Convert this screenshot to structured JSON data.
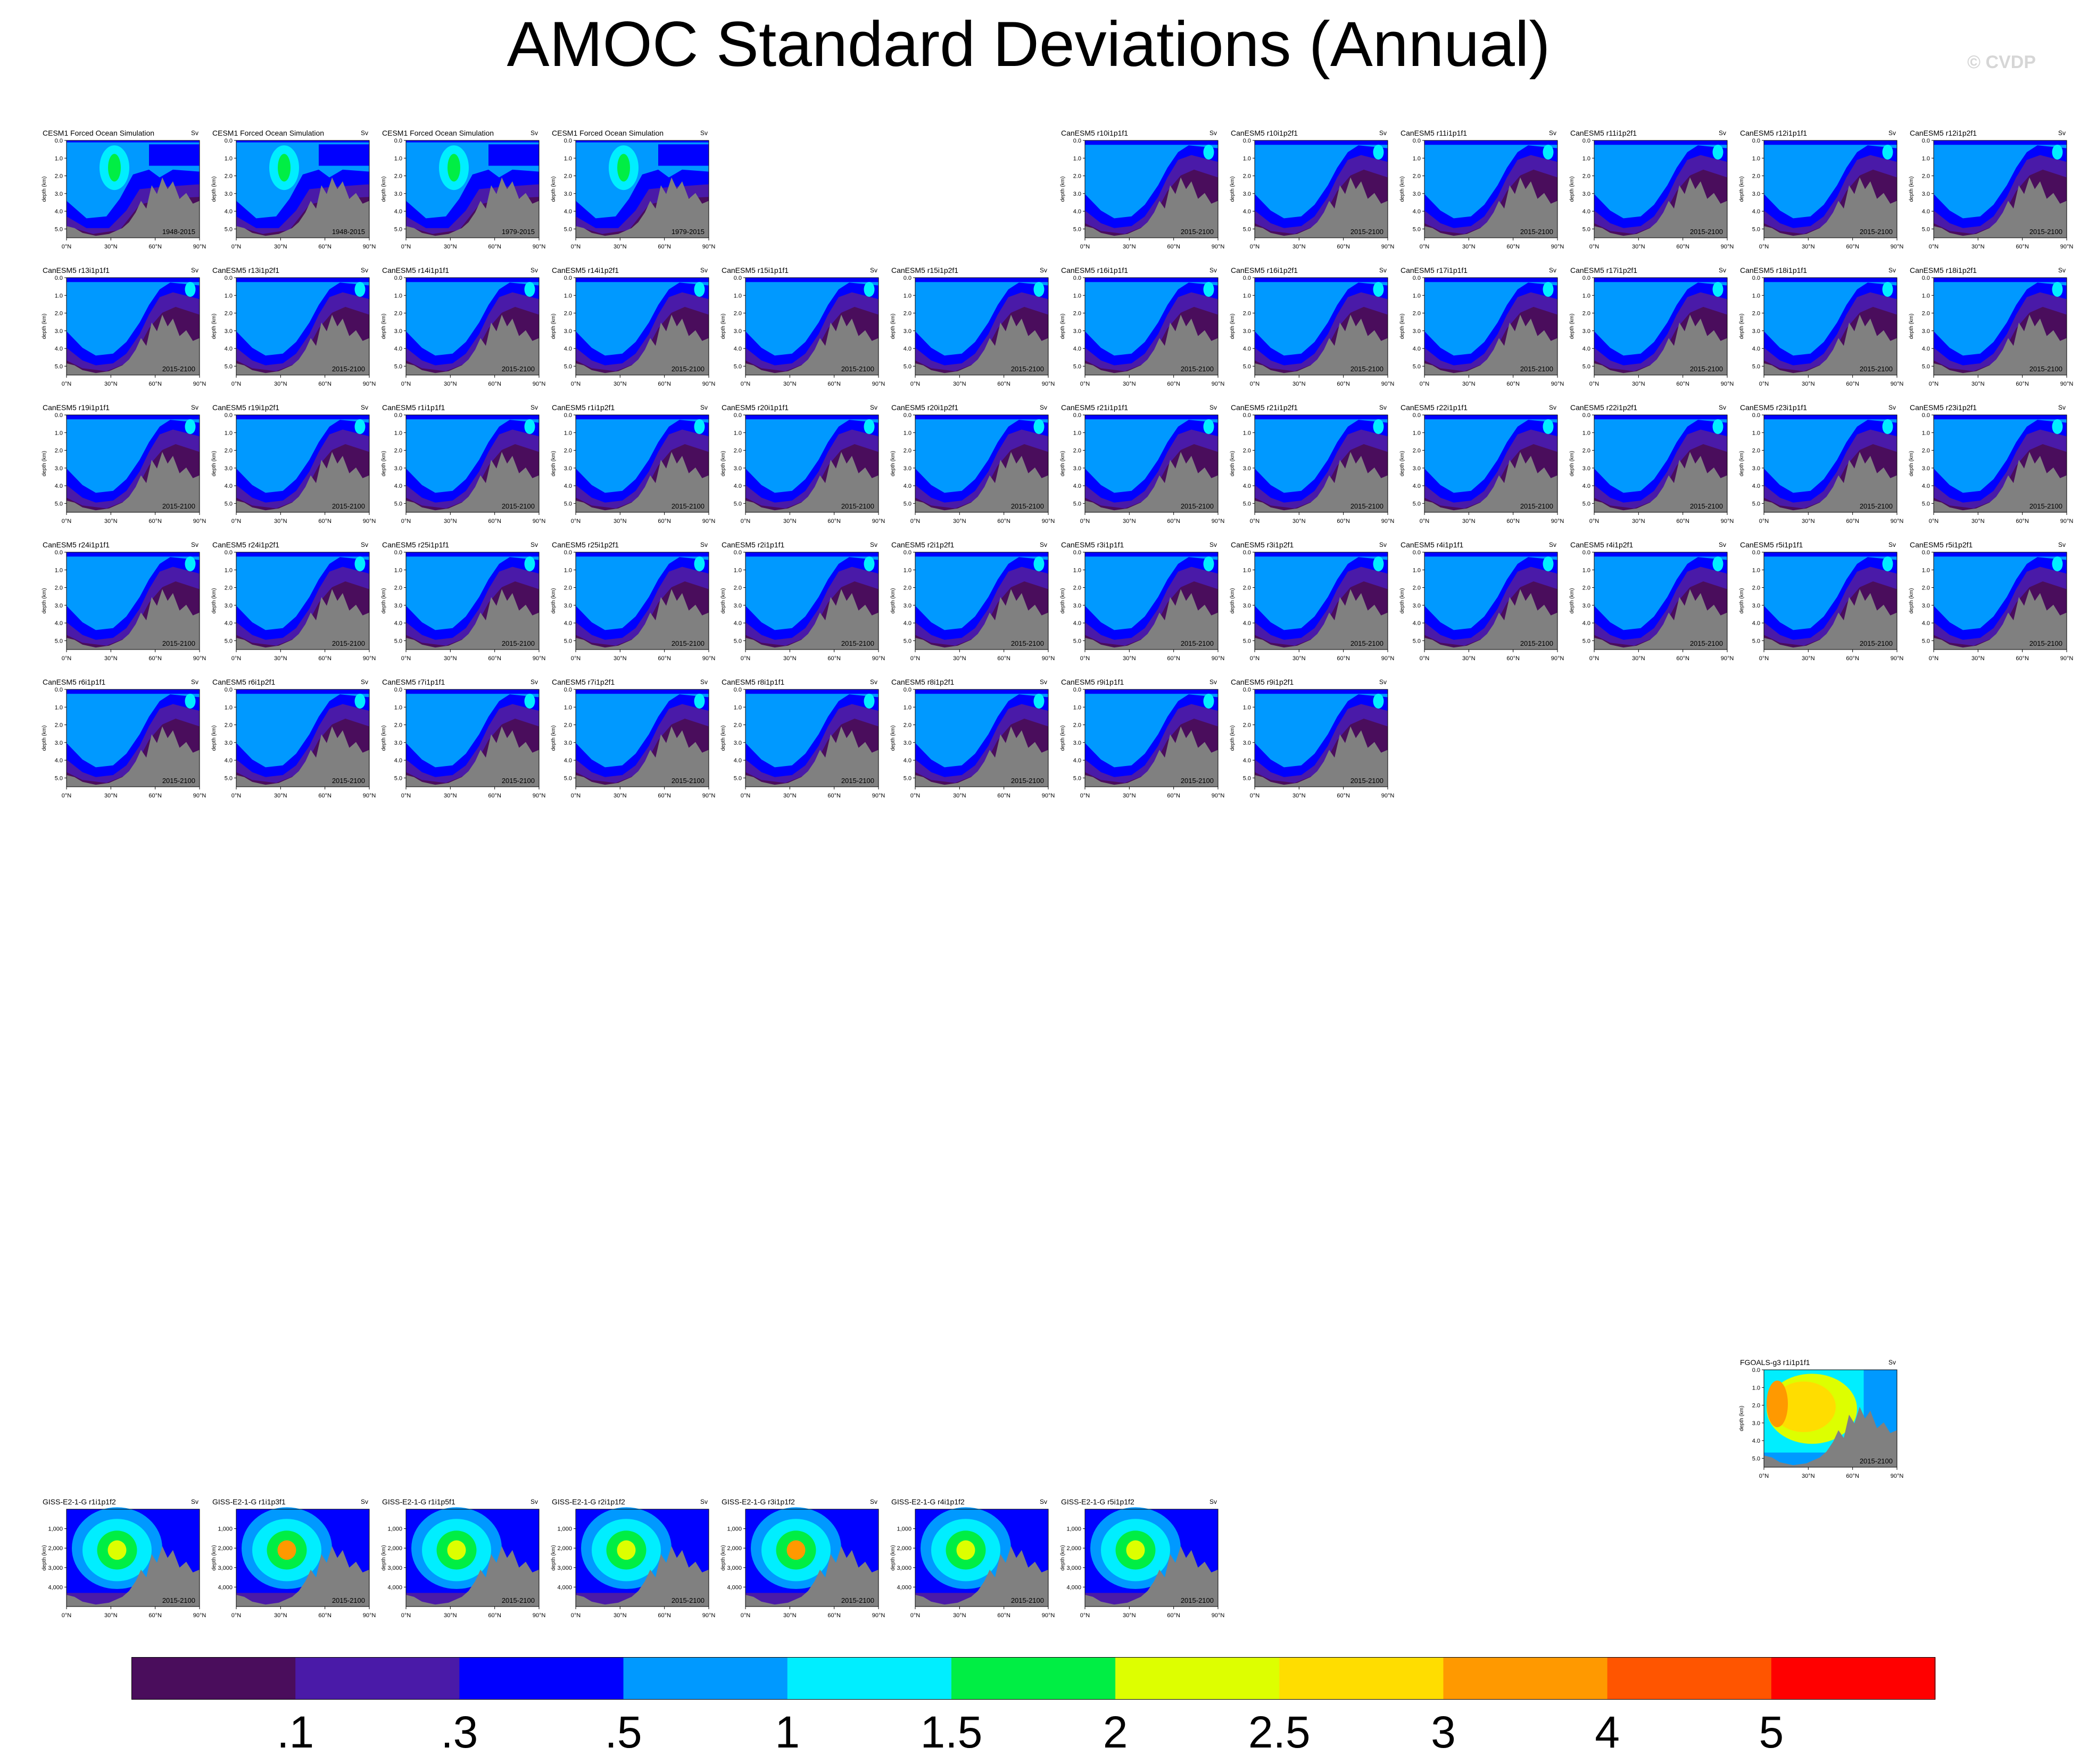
{
  "title": "AMOC Standard Deviations (Annual)",
  "copyright": "© CVDP",
  "colors": {
    "background": "#ffffff",
    "land_mask": "#808080",
    "levels": [
      "#4a0d5c",
      "#4a1aa8",
      "#0000ff",
      "#0099ff",
      "#00eeff",
      "#00ee44",
      "#ddff00",
      "#ffdd00",
      "#ff9900",
      "#ff5500",
      "#ff0000"
    ]
  },
  "panels": [
    {
      "title": "CESM1 Forced Ocean Simulation",
      "units": "Sv",
      "years": "1948-2015",
      "style": "cesm",
      "row": 0,
      "col": 0
    },
    {
      "title": "CESM1 Forced Ocean Simulation",
      "units": "Sv",
      "years": "1948-2015",
      "style": "cesm",
      "row": 0,
      "col": 1
    },
    {
      "title": "CESM1 Forced Ocean Simulation",
      "units": "Sv",
      "years": "1979-2015",
      "style": "cesm",
      "row": 0,
      "col": 2
    },
    {
      "title": "CESM1 Forced Ocean Simulation",
      "units": "Sv",
      "years": "1979-2015",
      "style": "cesm",
      "row": 0,
      "col": 3
    },
    {
      "title": "CanESM5 r10i1p1f1",
      "units": "Sv",
      "years": "2015-2100",
      "style": "can",
      "row": 0,
      "col": 6
    },
    {
      "title": "CanESM5 r10i1p2f1",
      "units": "Sv",
      "years": "2015-2100",
      "style": "can",
      "row": 0,
      "col": 7
    },
    {
      "title": "CanESM5 r11i1p1f1",
      "units": "Sv",
      "years": "2015-2100",
      "style": "can",
      "row": 0,
      "col": 8
    },
    {
      "title": "CanESM5 r11i1p2f1",
      "units": "Sv",
      "years": "2015-2100",
      "style": "can",
      "row": 0,
      "col": 9
    },
    {
      "title": "CanESM5 r12i1p1f1",
      "units": "Sv",
      "years": "2015-2100",
      "style": "can",
      "row": 0,
      "col": 10
    },
    {
      "title": "CanESM5 r12i1p2f1",
      "units": "Sv",
      "years": "2015-2100",
      "style": "can",
      "row": 0,
      "col": 11
    },
    {
      "title": "CanESM5 r13i1p1f1",
      "units": "Sv",
      "years": "2015-2100",
      "style": "can",
      "row": 1,
      "col": 0
    },
    {
      "title": "CanESM5 r13i1p2f1",
      "units": "Sv",
      "years": "2015-2100",
      "style": "can",
      "row": 1,
      "col": 1
    },
    {
      "title": "CanESM5 r14i1p1f1",
      "units": "Sv",
      "years": "2015-2100",
      "style": "can",
      "row": 1,
      "col": 2
    },
    {
      "title": "CanESM5 r14i1p2f1",
      "units": "Sv",
      "years": "2015-2100",
      "style": "can",
      "row": 1,
      "col": 3
    },
    {
      "title": "CanESM5 r15i1p1f1",
      "units": "Sv",
      "years": "2015-2100",
      "style": "can",
      "row": 1,
      "col": 4
    },
    {
      "title": "CanESM5 r15i1p2f1",
      "units": "Sv",
      "years": "2015-2100",
      "style": "can",
      "row": 1,
      "col": 5
    },
    {
      "title": "CanESM5 r16i1p1f1",
      "units": "Sv",
      "years": "2015-2100",
      "style": "can",
      "row": 1,
      "col": 6
    },
    {
      "title": "CanESM5 r16i1p2f1",
      "units": "Sv",
      "years": "2015-2100",
      "style": "can",
      "row": 1,
      "col": 7
    },
    {
      "title": "CanESM5 r17i1p1f1",
      "units": "Sv",
      "years": "2015-2100",
      "style": "can",
      "row": 1,
      "col": 8
    },
    {
      "title": "CanESM5 r17i1p2f1",
      "units": "Sv",
      "years": "2015-2100",
      "style": "can",
      "row": 1,
      "col": 9
    },
    {
      "title": "CanESM5 r18i1p1f1",
      "units": "Sv",
      "years": "2015-2100",
      "style": "can",
      "row": 1,
      "col": 10
    },
    {
      "title": "CanESM5 r18i1p2f1",
      "units": "Sv",
      "years": "2015-2100",
      "style": "can",
      "row": 1,
      "col": 11
    },
    {
      "title": "CanESM5 r19i1p1f1",
      "units": "Sv",
      "years": "2015-2100",
      "style": "can",
      "row": 2,
      "col": 0
    },
    {
      "title": "CanESM5 r19i1p2f1",
      "units": "Sv",
      "years": "2015-2100",
      "style": "can",
      "row": 2,
      "col": 1
    },
    {
      "title": "CanESM5 r1i1p1f1",
      "units": "Sv",
      "years": "2015-2100",
      "style": "can",
      "row": 2,
      "col": 2
    },
    {
      "title": "CanESM5 r1i1p2f1",
      "units": "Sv",
      "years": "2015-2100",
      "style": "can",
      "row": 2,
      "col": 3
    },
    {
      "title": "CanESM5 r20i1p1f1",
      "units": "Sv",
      "years": "2015-2100",
      "style": "can",
      "row": 2,
      "col": 4
    },
    {
      "title": "CanESM5 r20i1p2f1",
      "units": "Sv",
      "years": "2015-2100",
      "style": "can",
      "row": 2,
      "col": 5
    },
    {
      "title": "CanESM5 r21i1p1f1",
      "units": "Sv",
      "years": "2015-2100",
      "style": "can",
      "row": 2,
      "col": 6
    },
    {
      "title": "CanESM5 r21i1p2f1",
      "units": "Sv",
      "years": "2015-2100",
      "style": "can",
      "row": 2,
      "col": 7
    },
    {
      "title": "CanESM5 r22i1p1f1",
      "units": "Sv",
      "years": "2015-2100",
      "style": "can",
      "row": 2,
      "col": 8
    },
    {
      "title": "CanESM5 r22i1p2f1",
      "units": "Sv",
      "years": "2015-2100",
      "style": "can",
      "row": 2,
      "col": 9
    },
    {
      "title": "CanESM5 r23i1p1f1",
      "units": "Sv",
      "years": "2015-2100",
      "style": "can",
      "row": 2,
      "col": 10
    },
    {
      "title": "CanESM5 r23i1p2f1",
      "units": "Sv",
      "years": "2015-2100",
      "style": "can",
      "row": 2,
      "col": 11
    },
    {
      "title": "CanESM5 r24i1p1f1",
      "units": "Sv",
      "years": "2015-2100",
      "style": "can",
      "row": 3,
      "col": 0
    },
    {
      "title": "CanESM5 r24i1p2f1",
      "units": "Sv",
      "years": "2015-2100",
      "style": "can",
      "row": 3,
      "col": 1
    },
    {
      "title": "CanESM5 r25i1p1f1",
      "units": "Sv",
      "years": "2015-2100",
      "style": "can",
      "row": 3,
      "col": 2
    },
    {
      "title": "CanESM5 r25i1p2f1",
      "units": "Sv",
      "years": "2015-2100",
      "style": "can",
      "row": 3,
      "col": 3
    },
    {
      "title": "CanESM5 r2i1p1f1",
      "units": "Sv",
      "years": "2015-2100",
      "style": "can",
      "row": 3,
      "col": 4
    },
    {
      "title": "CanESM5 r2i1p2f1",
      "units": "Sv",
      "years": "2015-2100",
      "style": "can",
      "row": 3,
      "col": 5
    },
    {
      "title": "CanESM5 r3i1p1f1",
      "units": "Sv",
      "years": "2015-2100",
      "style": "can",
      "row": 3,
      "col": 6
    },
    {
      "title": "CanESM5 r3i1p2f1",
      "units": "Sv",
      "years": "2015-2100",
      "style": "can",
      "row": 3,
      "col": 7
    },
    {
      "title": "CanESM5 r4i1p1f1",
      "units": "Sv",
      "years": "2015-2100",
      "style": "can",
      "row": 3,
      "col": 8
    },
    {
      "title": "CanESM5 r4i1p2f1",
      "units": "Sv",
      "years": "2015-2100",
      "style": "can",
      "row": 3,
      "col": 9
    },
    {
      "title": "CanESM5 r5i1p1f1",
      "units": "Sv",
      "years": "2015-2100",
      "style": "can",
      "row": 3,
      "col": 10
    },
    {
      "title": "CanESM5 r5i1p2f1",
      "units": "Sv",
      "years": "2015-2100",
      "style": "can",
      "row": 3,
      "col": 11
    },
    {
      "title": "CanESM5 r6i1p1f1",
      "units": "Sv",
      "years": "2015-2100",
      "style": "can",
      "row": 4,
      "col": 0
    },
    {
      "title": "CanESM5 r6i1p2f1",
      "units": "Sv",
      "years": "2015-2100",
      "style": "can",
      "row": 4,
      "col": 1
    },
    {
      "title": "CanESM5 r7i1p1f1",
      "units": "Sv",
      "years": "2015-2100",
      "style": "can",
      "row": 4,
      "col": 2
    },
    {
      "title": "CanESM5 r7i1p2f1",
      "units": "Sv",
      "years": "2015-2100",
      "style": "can",
      "row": 4,
      "col": 3
    },
    {
      "title": "CanESM5 r8i1p1f1",
      "units": "Sv",
      "years": "2015-2100",
      "style": "can",
      "row": 4,
      "col": 4
    },
    {
      "title": "CanESM5 r8i1p2f1",
      "units": "Sv",
      "years": "2015-2100",
      "style": "can",
      "row": 4,
      "col": 5
    },
    {
      "title": "CanESM5 r9i1p1f1",
      "units": "Sv",
      "years": "2015-2100",
      "style": "can",
      "row": 4,
      "col": 6
    },
    {
      "title": "CanESM5 r9i1p2f1",
      "units": "Sv",
      "years": "2015-2100",
      "style": "can",
      "row": 4,
      "col": 7
    },
    {
      "title": "FGOALS-g3 r1i1p1f1",
      "units": "Sv",
      "years": "2015-2100",
      "style": "fgoals",
      "row": "fgoals",
      "col": 10
    },
    {
      "title": "GISS-E2-1-G r1i1p1f2",
      "units": "Sv",
      "years": "2015-2100",
      "style": "giss",
      "row": "giss",
      "col": 0
    },
    {
      "title": "GISS-E2-1-G r1i1p3f1",
      "units": "Sv",
      "years": "2015-2100",
      "style": "giss",
      "row": "giss",
      "col": 1
    },
    {
      "title": "GISS-E2-1-G r1i1p5f1",
      "units": "Sv",
      "years": "2015-2100",
      "style": "giss",
      "row": "giss",
      "col": 2
    },
    {
      "title": "GISS-E2-1-G r2i1p1f2",
      "units": "Sv",
      "years": "2015-2100",
      "style": "giss",
      "row": "giss",
      "col": 3
    },
    {
      "title": "GISS-E2-1-G r3i1p1f2",
      "units": "Sv",
      "years": "2015-2100",
      "style": "giss",
      "row": "giss",
      "col": 4
    },
    {
      "title": "GISS-E2-1-G r4i1p1f2",
      "units": "Sv",
      "years": "2015-2100",
      "style": "giss",
      "row": "giss",
      "col": 5
    },
    {
      "title": "GISS-E2-1-G r5i1p1f2",
      "units": "Sv",
      "years": "2015-2100",
      "style": "giss",
      "row": "giss",
      "col": 6
    }
  ],
  "chart_data": {
    "type": "heatmap",
    "title": "AMOC Standard Deviations (Annual)",
    "units": "Sv",
    "x_ticks": [
      "0°N",
      "30°N",
      "60°N",
      "90°N"
    ],
    "xlim": [
      0,
      90
    ],
    "y_label": "depth (km)",
    "y_ticks_km": [
      "0.0",
      "1.0",
      "2.0",
      "3.0",
      "4.0",
      "5.0"
    ],
    "ylim_km": [
      0,
      5.5
    ],
    "y_ticks_giss": [
      "1,000",
      "2,000",
      "3,000",
      "4,000"
    ],
    "colorbar": {
      "levels": [
        ".1",
        ".3",
        ".5",
        "1",
        "1.5",
        "2",
        "2.5",
        "3",
        "4",
        "5"
      ],
      "colors": [
        "#4a0d5c",
        "#4a1aa8",
        "#0000ff",
        "#0099ff",
        "#00eeff",
        "#00ee44",
        "#ddff00",
        "#ffdd00",
        "#ff9900",
        "#ff5500",
        "#ff0000"
      ]
    }
  }
}
